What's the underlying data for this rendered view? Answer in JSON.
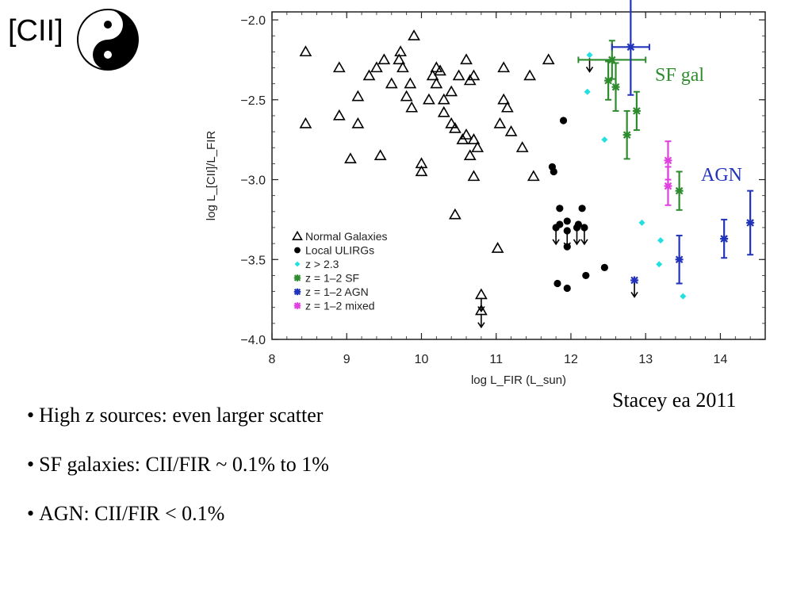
{
  "slide": {
    "title": "[CII]",
    "icon": "yin-yang-icon",
    "annotations": [
      {
        "text": "SF gal",
        "color": "#2e8b2e"
      },
      {
        "text": "AGN",
        "color": "#2233bb"
      }
    ],
    "citation": "Stacey ea 2011",
    "bullets": [
      "High z sources: even larger scatter",
      "SF galaxies:  CII/FIR ~ 0.1% to 1%",
      "AGN: CII/FIR < 0.1%"
    ]
  },
  "chart_data": {
    "type": "scatter",
    "title": "",
    "xlabel": "log L_FIR (L_sun)",
    "ylabel": "log L_[CII]/L_FIR",
    "xlim": [
      8,
      14.6
    ],
    "ylim": [
      -4.0,
      -1.95
    ],
    "xticks": [
      "8",
      "9",
      "10",
      "11",
      "12",
      "13",
      "14"
    ],
    "yticks": [
      "-2.0",
      "-2.5",
      "-3.0",
      "-3.5",
      "-4.0"
    ],
    "legend_position": "bottom-left",
    "colors": {
      "normal": "#000000",
      "ulirg": "#000000",
      "highz": "#22e0e0",
      "sf": "#2e8b2e",
      "agn": "#2233bb",
      "mixed": "#e040e0"
    },
    "legend": [
      {
        "marker": "triangle",
        "label": "Normal Galaxies",
        "key": "normal"
      },
      {
        "marker": "circle",
        "label": "Local ULIRGs",
        "key": "ulirg"
      },
      {
        "marker": "diamond",
        "label": "z > 2.3",
        "key": "highz"
      },
      {
        "marker": "star",
        "label": "z = 1–2 SF",
        "key": "sf"
      },
      {
        "marker": "star",
        "label": "z = 1–2 AGN",
        "key": "agn"
      },
      {
        "marker": "star",
        "label": "z = 1–2 mixed",
        "key": "mixed"
      }
    ],
    "series": [
      {
        "key": "normal",
        "marker": "triangle",
        "points": [
          {
            "x": 8.45,
            "y": -2.2
          },
          {
            "x": 8.9,
            "y": -2.3
          },
          {
            "x": 9.15,
            "y": -2.48
          },
          {
            "x": 9.3,
            "y": -2.35
          },
          {
            "x": 9.4,
            "y": -2.3
          },
          {
            "x": 9.5,
            "y": -2.25
          },
          {
            "x": 9.6,
            "y": -2.4
          },
          {
            "x": 9.7,
            "y": -2.25
          },
          {
            "x": 9.72,
            "y": -2.2
          },
          {
            "x": 9.75,
            "y": -2.3
          },
          {
            "x": 9.8,
            "y": -2.48
          },
          {
            "x": 9.85,
            "y": -2.4
          },
          {
            "x": 9.87,
            "y": -2.55
          },
          {
            "x": 9.9,
            "y": -2.1
          },
          {
            "x": 10.15,
            "y": -2.35
          },
          {
            "x": 10.2,
            "y": -2.4
          },
          {
            "x": 10.2,
            "y": -2.3
          },
          {
            "x": 10.25,
            "y": -2.32
          },
          {
            "x": 10.3,
            "y": -2.5
          },
          {
            "x": 10.4,
            "y": -2.45
          },
          {
            "x": 10.5,
            "y": -2.35
          },
          {
            "x": 10.6,
            "y": -2.25
          },
          {
            "x": 10.65,
            "y": -2.38
          },
          {
            "x": 10.7,
            "y": -2.35
          },
          {
            "x": 10.1,
            "y": -2.5
          },
          {
            "x": 10.3,
            "y": -2.58
          },
          {
            "x": 10.4,
            "y": -2.65
          },
          {
            "x": 10.45,
            "y": -2.68
          },
          {
            "x": 10.55,
            "y": -2.75
          },
          {
            "x": 10.6,
            "y": -2.72
          },
          {
            "x": 10.7,
            "y": -2.75
          },
          {
            "x": 10.75,
            "y": -2.8
          },
          {
            "x": 10.65,
            "y": -2.85
          },
          {
            "x": 10.7,
            "y": -2.98
          },
          {
            "x": 11.1,
            "y": -2.5
          },
          {
            "x": 11.15,
            "y": -2.55
          },
          {
            "x": 11.05,
            "y": -2.65
          },
          {
            "x": 11.2,
            "y": -2.7
          },
          {
            "x": 11.1,
            "y": -2.3
          },
          {
            "x": 11.35,
            "y": -2.8
          },
          {
            "x": 11.45,
            "y": -2.35
          },
          {
            "x": 11.7,
            "y": -2.25
          },
          {
            "x": 11.5,
            "y": -2.98
          },
          {
            "x": 8.45,
            "y": -2.65
          },
          {
            "x": 8.9,
            "y": -2.6
          },
          {
            "x": 9.15,
            "y": -2.65
          },
          {
            "x": 9.05,
            "y": -2.87
          },
          {
            "x": 9.45,
            "y": -2.85
          },
          {
            "x": 10.0,
            "y": -2.9
          },
          {
            "x": 10.0,
            "y": -2.95
          },
          {
            "x": 10.45,
            "y": -3.22
          },
          {
            "x": 11.02,
            "y": -3.43
          }
        ]
      },
      {
        "key": "normal_limits",
        "marker": "triangle",
        "upper_limit": true,
        "points": [
          {
            "x": 10.8,
            "y": -3.72
          },
          {
            "x": 10.8,
            "y": -3.82
          }
        ]
      },
      {
        "key": "ulirg",
        "marker": "circle",
        "points": [
          {
            "x": 11.9,
            "y": -2.63
          },
          {
            "x": 11.75,
            "y": -2.92
          },
          {
            "x": 11.77,
            "y": -2.95
          },
          {
            "x": 11.85,
            "y": -3.18
          },
          {
            "x": 12.15,
            "y": -3.18
          },
          {
            "x": 11.85,
            "y": -3.28
          },
          {
            "x": 11.95,
            "y": -3.26
          },
          {
            "x": 12.1,
            "y": -3.28
          },
          {
            "x": 11.95,
            "y": -3.42
          },
          {
            "x": 11.82,
            "y": -3.65
          },
          {
            "x": 11.95,
            "y": -3.68
          },
          {
            "x": 12.2,
            "y": -3.6
          },
          {
            "x": 12.45,
            "y": -3.55
          }
        ]
      },
      {
        "key": "ulirg_limits",
        "marker": "circle",
        "upper_limit": true,
        "points": [
          {
            "x": 11.8,
            "y": -3.3
          },
          {
            "x": 11.95,
            "y": -3.32
          },
          {
            "x": 12.08,
            "y": -3.3
          },
          {
            "x": 12.18,
            "y": -3.3
          }
        ]
      },
      {
        "key": "highz",
        "marker": "diamond",
        "points": [
          {
            "x": 12.22,
            "y": -2.45
          },
          {
            "x": 12.45,
            "y": -2.75
          },
          {
            "x": 12.95,
            "y": -3.27
          },
          {
            "x": 13.2,
            "y": -3.38
          },
          {
            "x": 13.18,
            "y": -3.53
          },
          {
            "x": 13.5,
            "y": -3.73
          }
        ]
      },
      {
        "key": "highz_limits",
        "marker": "diamond",
        "upper_limit": true,
        "points": [
          {
            "x": 12.25,
            "y": -2.22
          }
        ]
      },
      {
        "key": "sf",
        "marker": "star",
        "points": [
          {
            "x": 12.55,
            "y": -2.25,
            "xerr": 0.45,
            "yerr": 0.12
          },
          {
            "x": 12.5,
            "y": -2.38,
            "xerr": 0,
            "yerr": 0.12
          },
          {
            "x": 12.6,
            "y": -2.42,
            "xerr": 0,
            "yerr": 0.15
          },
          {
            "x": 12.75,
            "y": -2.72,
            "xerr": 0,
            "yerr": 0.15
          },
          {
            "x": 12.88,
            "y": -2.57,
            "xerr": 0,
            "yerr": 0.12
          },
          {
            "x": 13.45,
            "y": -3.07,
            "xerr": 0,
            "yerr": 0.12
          }
        ]
      },
      {
        "key": "agn",
        "marker": "star",
        "points": [
          {
            "x": 12.8,
            "y": -2.17,
            "xerr": 0.25,
            "yerr": 0.3
          },
          {
            "x": 13.45,
            "y": -3.5,
            "xerr": 0,
            "yerr": 0.15
          },
          {
            "x": 14.05,
            "y": -3.37,
            "xerr": 0,
            "yerr": 0.12
          },
          {
            "x": 14.4,
            "y": -3.27,
            "xerr": 0,
            "yerr": 0.2
          }
        ]
      },
      {
        "key": "agn_limits",
        "marker": "star",
        "upper_limit": true,
        "points": [
          {
            "x": 12.85,
            "y": -3.63
          }
        ]
      },
      {
        "key": "mixed",
        "marker": "star",
        "points": [
          {
            "x": 13.3,
            "y": -2.88,
            "xerr": 0,
            "yerr": 0.12
          },
          {
            "x": 13.3,
            "y": -3.04,
            "xerr": 0,
            "yerr": 0.12
          }
        ]
      }
    ]
  }
}
